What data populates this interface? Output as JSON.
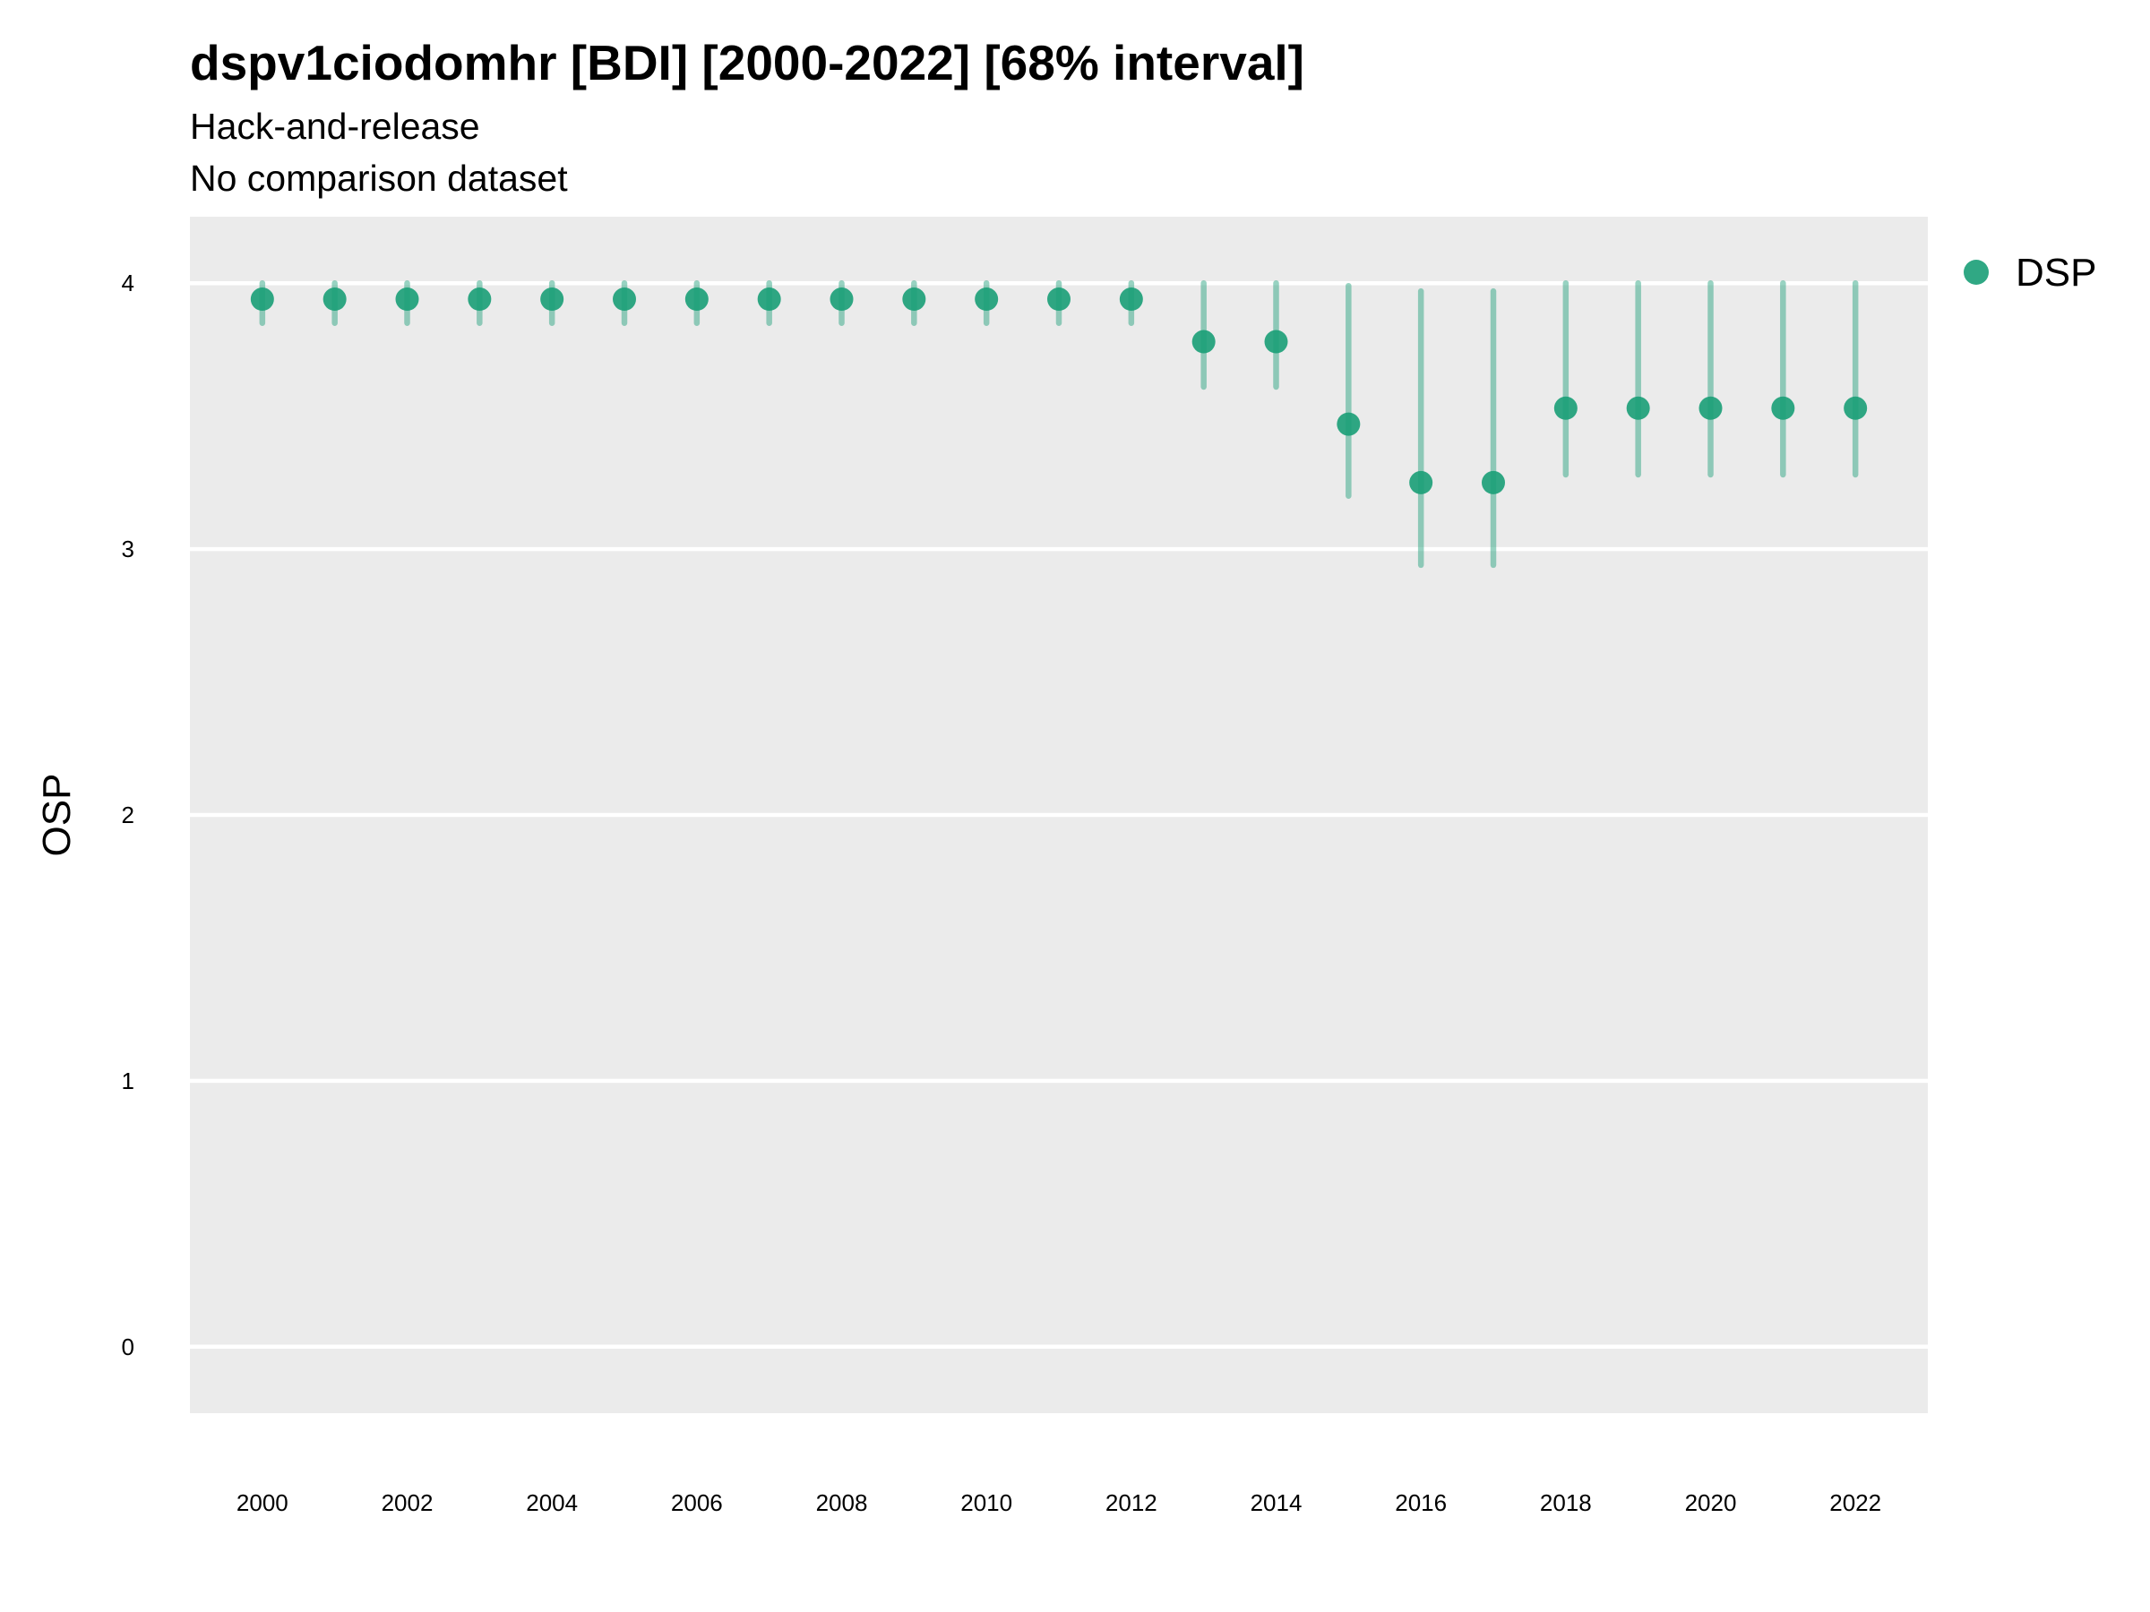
{
  "title": "dspv1ciodomhr [BDI] [2000-2022] [68% interval]",
  "subtitle": "Hack-and-release",
  "caption": "No comparison dataset",
  "colors": {
    "series": "#1a9e77",
    "panel": "#ebebeb",
    "grid": "#ffffff"
  },
  "chart_data": {
    "type": "scatter",
    "title": "dspv1ciodomhr [BDI] [2000-2022] [68% interval]",
    "xlabel": "",
    "ylabel": "OSP",
    "xlim": [
      1999,
      2023
    ],
    "ylim": [
      -0.25,
      4.25
    ],
    "x_ticks": [
      2000,
      2002,
      2004,
      2006,
      2008,
      2010,
      2012,
      2014,
      2016,
      2018,
      2020,
      2022
    ],
    "y_ticks": [
      0,
      1,
      2,
      3,
      4
    ],
    "grid": true,
    "legend": {
      "position": "right",
      "entries": [
        "DSP"
      ]
    },
    "series": [
      {
        "name": "DSP",
        "x": [
          2000,
          2001,
          2002,
          2003,
          2004,
          2005,
          2006,
          2007,
          2008,
          2009,
          2010,
          2011,
          2012,
          2013,
          2014,
          2015,
          2016,
          2017,
          2018,
          2019,
          2020,
          2021,
          2022
        ],
        "y": [
          3.94,
          3.94,
          3.94,
          3.94,
          3.94,
          3.94,
          3.94,
          3.94,
          3.94,
          3.94,
          3.94,
          3.94,
          3.94,
          3.78,
          3.78,
          3.47,
          3.25,
          3.25,
          3.53,
          3.53,
          3.53,
          3.53,
          3.53
        ],
        "lower": [
          3.85,
          3.85,
          3.85,
          3.85,
          3.85,
          3.85,
          3.85,
          3.85,
          3.85,
          3.85,
          3.85,
          3.85,
          3.85,
          3.61,
          3.61,
          3.2,
          2.94,
          2.94,
          3.28,
          3.28,
          3.28,
          3.28,
          3.28
        ],
        "upper": [
          4.0,
          4.0,
          4.0,
          4.0,
          4.0,
          4.0,
          4.0,
          4.0,
          4.0,
          4.0,
          4.0,
          4.0,
          4.0,
          4.0,
          4.0,
          3.99,
          3.97,
          3.97,
          4.0,
          4.0,
          4.0,
          4.0,
          4.0
        ]
      }
    ]
  }
}
